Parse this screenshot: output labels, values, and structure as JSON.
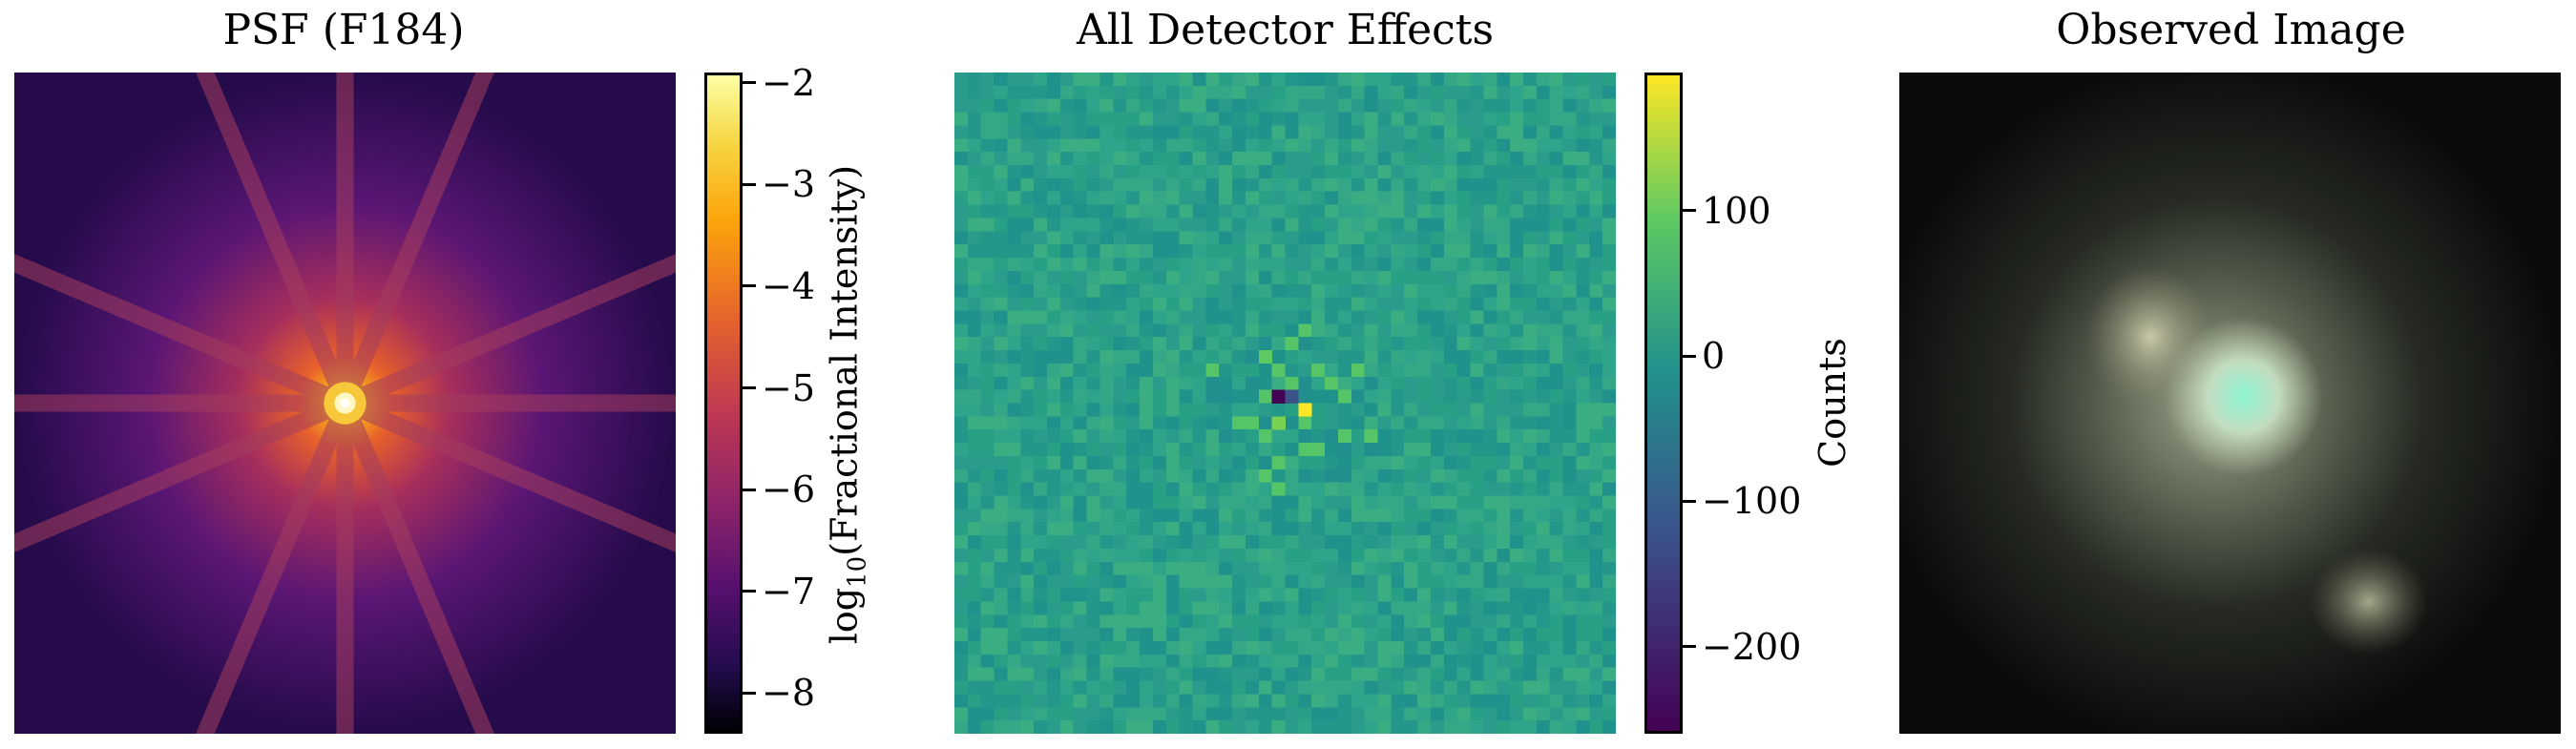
{
  "chart_data": [
    {
      "type": "heatmap",
      "title": "PSF (F184)",
      "colormap": "inferno",
      "colorbar": {
        "label_main": "log",
        "label_sub": "10",
        "label_rest": "(Fractional Intensity)",
        "range": [
          -8.4,
          -1.9
        ],
        "ticks": [
          -2,
          -3,
          -4,
          -5,
          -6,
          -7,
          -8
        ],
        "tick_labels": [
          "−2",
          "−3",
          "−4",
          "−5",
          "−6",
          "−7",
          "−8"
        ]
      }
    },
    {
      "type": "heatmap",
      "title": "All Detector Effects",
      "colormap": "viridis",
      "colorbar": {
        "label": "Counts",
        "range": [
          -260,
          195
        ],
        "ticks": [
          100,
          0,
          -100,
          -200
        ],
        "tick_labels": [
          "100",
          "0",
          "−100",
          "−200"
        ]
      }
    },
    {
      "type": "heatmap",
      "title": "Observed Image"
    }
  ]
}
